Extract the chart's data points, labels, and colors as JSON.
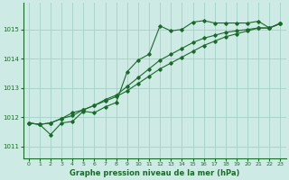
{
  "title": "Graphe pression niveau de la mer (hPa)",
  "bg_color": "#ceeae4",
  "grid_color": "#a8d5cc",
  "line_color": "#1a6b2a",
  "xlim": [
    -0.5,
    23.5
  ],
  "ylim": [
    1010.6,
    1015.9
  ],
  "yticks": [
    1011,
    1012,
    1013,
    1014,
    1015
  ],
  "xticks": [
    0,
    1,
    2,
    3,
    4,
    5,
    6,
    7,
    8,
    9,
    10,
    11,
    12,
    13,
    14,
    15,
    16,
    17,
    18,
    19,
    20,
    21,
    22,
    23
  ],
  "series": [
    [
      1011.8,
      1011.75,
      1011.4,
      1011.8,
      1011.85,
      1012.2,
      1012.15,
      1012.35,
      1012.5,
      1013.55,
      1013.95,
      1014.15,
      1015.12,
      1014.95,
      1015.0,
      1015.25,
      1015.3,
      1015.22,
      1015.22,
      1015.22,
      1015.22,
      1015.28,
      1015.05,
      1015.22
    ],
    [
      1011.8,
      1011.75,
      1011.8,
      1011.95,
      1012.15,
      1012.25,
      1012.4,
      1012.6,
      1012.75,
      1013.05,
      1013.35,
      1013.65,
      1013.95,
      1014.15,
      1014.35,
      1014.55,
      1014.7,
      1014.8,
      1014.9,
      1014.95,
      1015.0,
      1015.05,
      1015.05,
      1015.2
    ],
    [
      1011.8,
      1011.75,
      1011.8,
      1011.95,
      1012.05,
      1012.25,
      1012.4,
      1012.55,
      1012.7,
      1012.9,
      1013.15,
      1013.4,
      1013.65,
      1013.85,
      1014.05,
      1014.25,
      1014.45,
      1014.6,
      1014.75,
      1014.85,
      1014.95,
      1015.05,
      1015.05,
      1015.2
    ]
  ]
}
